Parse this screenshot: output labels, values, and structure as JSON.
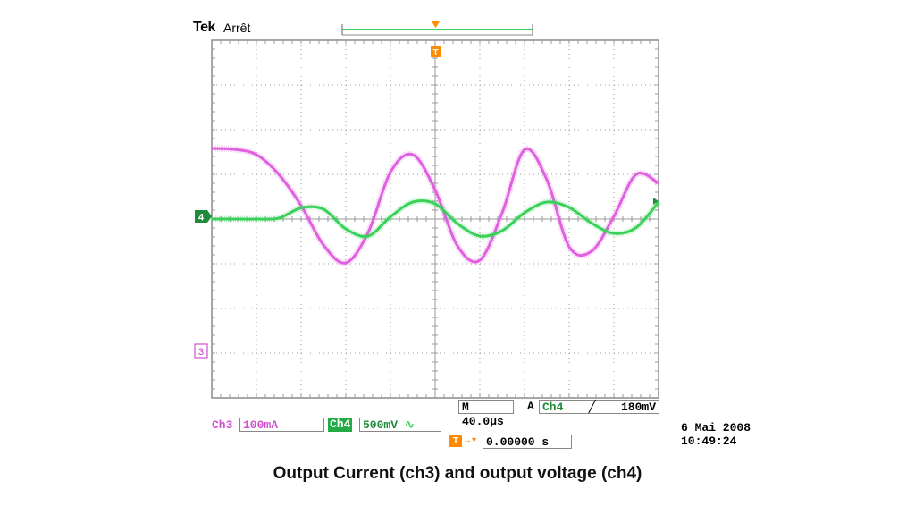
{
  "header": {
    "brand": "Tek",
    "status": "Arrêt"
  },
  "markers": {
    "ch4": "4",
    "ch3": "3",
    "trigger_top": "T"
  },
  "colors": {
    "ch3": "#e060e0",
    "ch4": "#3ad15a",
    "trigger": "#ff8c00",
    "grid": "#9a9a9a",
    "badge": "#22aa44"
  },
  "readout": {
    "timebase": "M 40.0µs",
    "trigger_mode": "A",
    "trigger_channel": "Ch4",
    "trigger_slope_icon": "rising-edge-icon",
    "trigger_level": "180mV",
    "ch3_label": "Ch3",
    "ch3_scale": "100mA",
    "ch4_label": "Ch4",
    "ch4_scale": "500mV",
    "ch4_coupling_icon": "ac-coupling-icon",
    "trigger_pos_label": "T",
    "trigger_pos_value": "0.00000 s",
    "date": "6 Mai  2008",
    "time": "10:49:24"
  },
  "caption": "Output Current (ch3) and output voltage (ch4)",
  "chart_data": {
    "type": "line",
    "grid": true,
    "xlim": [
      -200,
      200
    ],
    "ylim": [
      -4,
      4
    ],
    "series": [
      {
        "x": [
          -200,
          -180,
          -160,
          -140,
          -120,
          -100,
          -80,
          -60,
          -40,
          -20,
          0,
          20,
          40,
          60,
          80,
          100,
          120,
          140,
          160,
          180,
          200
        ],
        "values": [
          1.58,
          1.56,
          1.44,
          1.0,
          0.3,
          -0.58,
          -0.98,
          -0.3,
          1.05,
          1.44,
          0.65,
          -0.6,
          -0.92,
          0.14,
          1.55,
          0.88,
          -0.62,
          -0.72,
          0.06,
          1.0,
          0.8
        ]
      },
      {
        "x": [
          -200,
          -180,
          -160,
          -140,
          -120,
          -100,
          -80,
          -60,
          -40,
          -20,
          0,
          20,
          40,
          60,
          80,
          100,
          120,
          140,
          160,
          180,
          200
        ],
        "values": [
          0.0,
          0.0,
          0.0,
          0.02,
          0.25,
          0.22,
          -0.22,
          -0.38,
          0.05,
          0.38,
          0.34,
          -0.1,
          -0.38,
          -0.26,
          0.14,
          0.38,
          0.26,
          -0.09,
          -0.32,
          -0.19,
          0.38
        ]
      }
    ]
  }
}
